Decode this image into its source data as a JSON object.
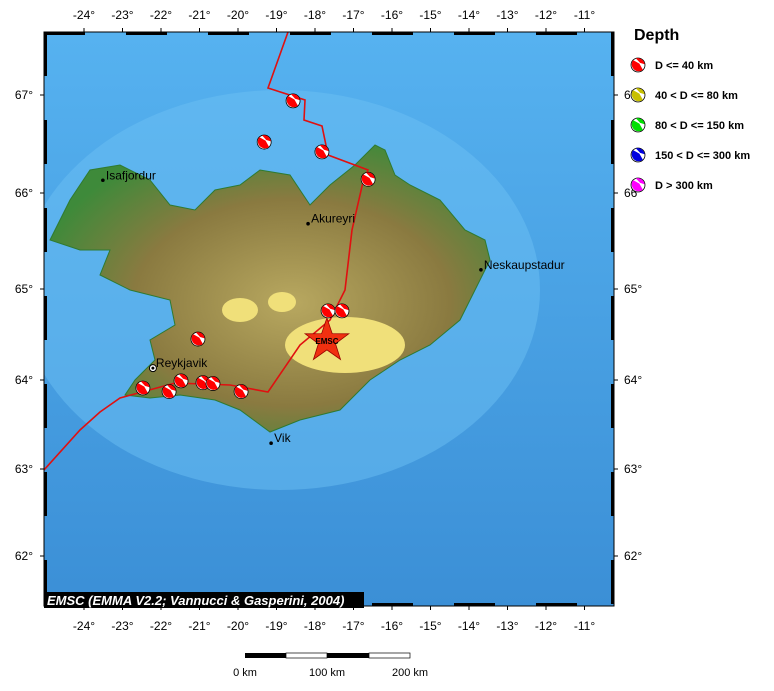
{
  "map": {
    "lon_ticks": [
      -24,
      -23,
      -22,
      -21,
      -20,
      -19,
      -18,
      -17,
      -16,
      -15,
      -14,
      -13,
      -12,
      -11
    ],
    "lat_ticks": [
      67,
      66,
      65,
      64,
      63,
      62
    ],
    "lon_labels": [
      "-24°",
      "-23°",
      "-22°",
      "-21°",
      "-20°",
      "-19°",
      "-18°",
      "-17°",
      "-16°",
      "-15°",
      "-14°",
      "-13°",
      "-12°",
      "-11°"
    ],
    "lat_labels": [
      "67°",
      "66°",
      "65°",
      "64°",
      "63°",
      "62°"
    ],
    "lon_range": [
      -24.9,
      -10.1
    ],
    "lat_range": [
      61.5,
      67.65
    ],
    "colors": {
      "ocean": "#4aa3e6",
      "land_low": "#3e8a3a",
      "land_high": "#9a8a4a",
      "glacier": "#f0e07a",
      "plate_boundary": "#e01010"
    },
    "cities": [
      {
        "name": "Isafjordur",
        "lon": -23.51,
        "lat": 66.13
      },
      {
        "name": "Akureyri",
        "lon": -18.18,
        "lat": 65.68
      },
      {
        "name": "Neskaupstadur",
        "lon": -13.69,
        "lat": 65.2
      },
      {
        "name": "Reykjavik",
        "lon": -22.21,
        "lat": 64.13
      },
      {
        "name": "Vik",
        "lon": -19.14,
        "lat": 63.29
      }
    ],
    "events": [
      {
        "lon": -18.57,
        "lat": 66.94,
        "depth_class": "D <= 40 km"
      },
      {
        "lon": -19.32,
        "lat": 66.52,
        "depth_class": "D <= 40 km"
      },
      {
        "lon": -17.82,
        "lat": 66.42,
        "depth_class": "D <= 40 km"
      },
      {
        "lon": -16.62,
        "lat": 66.14,
        "depth_class": "D <= 40 km"
      },
      {
        "lon": -21.04,
        "lat": 64.45,
        "depth_class": "D <= 40 km"
      },
      {
        "lon": -17.66,
        "lat": 64.76,
        "depth_class": "D <= 40 km"
      },
      {
        "lon": -17.3,
        "lat": 64.76,
        "depth_class": "D <= 40 km"
      },
      {
        "lon": -22.47,
        "lat": 63.91,
        "depth_class": "D <= 40 km"
      },
      {
        "lon": -21.79,
        "lat": 63.87,
        "depth_class": "D <= 40 km"
      },
      {
        "lon": -21.48,
        "lat": 63.99,
        "depth_class": "D <= 40 km"
      },
      {
        "lon": -20.91,
        "lat": 63.97,
        "depth_class": "D <= 40 km"
      },
      {
        "lon": -20.65,
        "lat": 63.96,
        "depth_class": "D <= 40 km"
      },
      {
        "lon": -19.92,
        "lat": 63.87,
        "depth_class": "D <= 40 km"
      }
    ],
    "epicenter": {
      "label": "EMSC",
      "lon": -17.69,
      "lat": 64.43
    },
    "credit": "EMSC (EMMA V2.2; Vannucci & Gasperini, 2004)"
  },
  "legend": {
    "title": "Depth",
    "items": [
      {
        "label": "D <= 40 km",
        "color": "#ff0000"
      },
      {
        "label": "40 < D <= 80 km",
        "color": "#c8c000"
      },
      {
        "label": "80 < D <= 150 km",
        "color": "#00e000"
      },
      {
        "label": "150 < D <= 300 km",
        "color": "#0000e0"
      },
      {
        "label": "D > 300 km",
        "color": "#ff00ff"
      }
    ]
  },
  "scale_bar": {
    "labels": [
      "0 km",
      "100 km",
      "200 km"
    ]
  }
}
